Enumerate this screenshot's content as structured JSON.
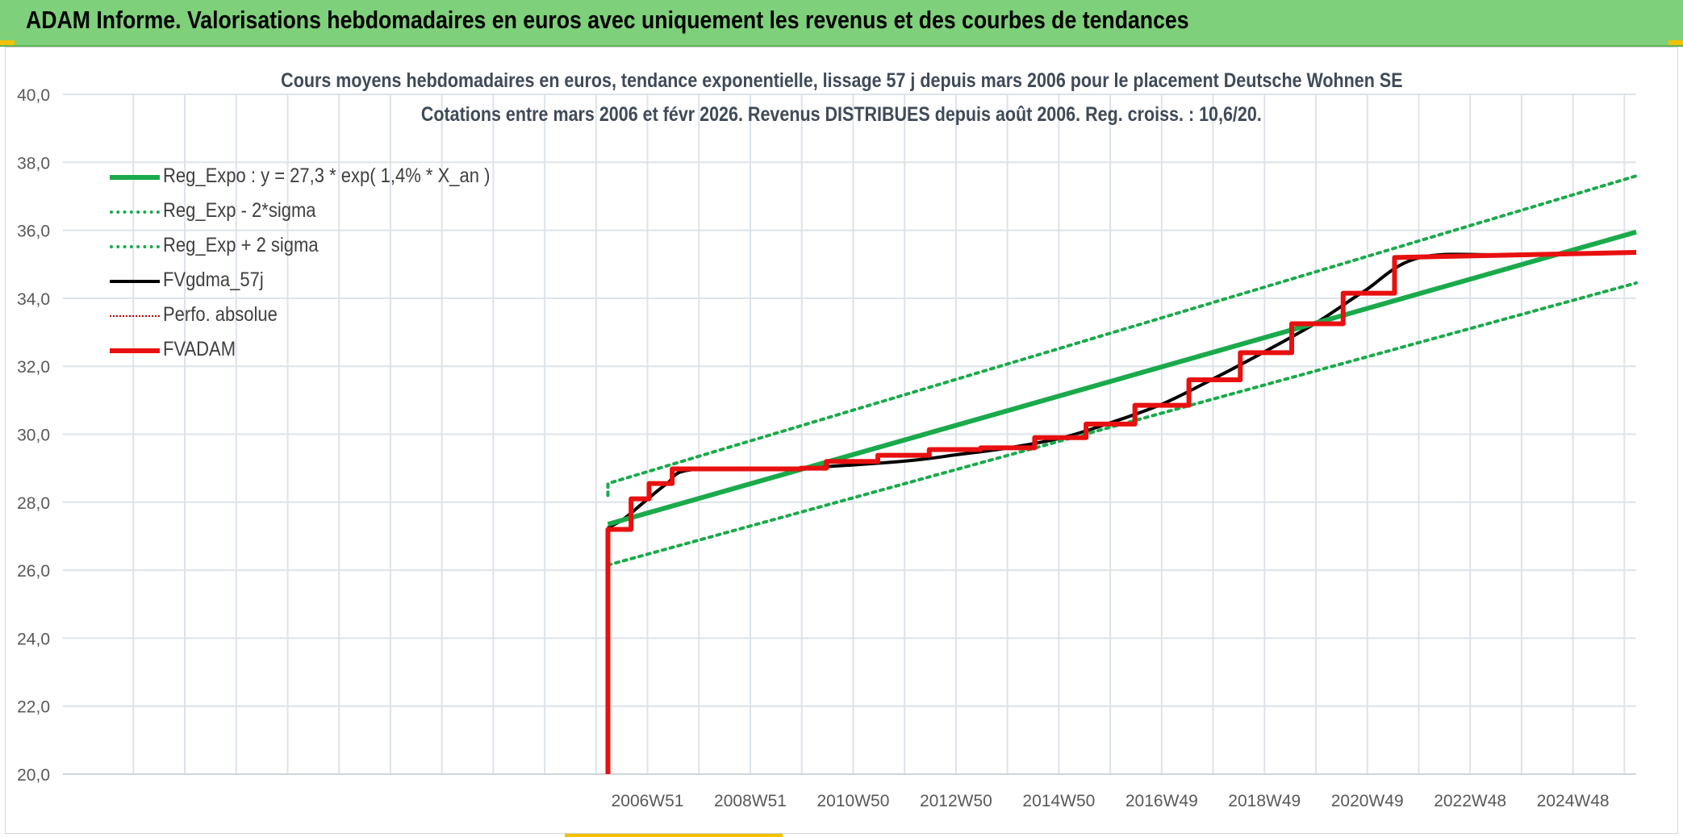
{
  "banner": {
    "title": "ADAM Informe. Valorisations hebdomadaires en euros avec uniquement les revenus et des courbes de tendances"
  },
  "colors": {
    "banner_bg": "#7ed07a",
    "reg_expo": "#1aaa4b",
    "fvgdma": "#000000",
    "perfo_absolue": "#c00000",
    "fvadam": "#e81010",
    "grid": "#dde3ea"
  },
  "chart_data": {
    "type": "line",
    "title": "Cours moyens hebdomadaires en euros, tendance exponentielle, lissage 57 j depuis mars 2006 pour le placement Deutsche Wohnen SE",
    "subtitle": "Cotations entre mars 2006 et févr 2026. Revenus DISTRIBUES depuis août 2006. Reg. croiss. : 10,6/20.",
    "xlabel": "",
    "ylabel": "",
    "ylim": [
      20,
      40
    ],
    "xlim": [
      1995.6,
      2026.2
    ],
    "y_ticks": [
      "20,0",
      "22,0",
      "24,0",
      "26,0",
      "28,0",
      "30,0",
      "32,0",
      "34,0",
      "36,0",
      "38,0",
      "40,0"
    ],
    "x_ticks": [
      {
        "label": "2006W51",
        "x": 2006.97
      },
      {
        "label": "2008W51",
        "x": 2008.97
      },
      {
        "label": "2010W50",
        "x": 2010.97
      },
      {
        "label": "2012W50",
        "x": 2012.97
      },
      {
        "label": "2014W50",
        "x": 2014.97
      },
      {
        "label": "2016W49",
        "x": 2016.97
      },
      {
        "label": "2018W49",
        "x": 2018.97
      },
      {
        "label": "2020W49",
        "x": 2020.97
      },
      {
        "label": "2022W48",
        "x": 2022.97
      },
      {
        "label": "2024W48",
        "x": 2024.97
      }
    ],
    "x_gridlines": [
      1996.97,
      1997.97,
      1998.97,
      1999.97,
      2000.97,
      2001.97,
      2002.97,
      2003.97,
      2004.97,
      2005.97,
      2006.97,
      2007.97,
      2008.97,
      2009.97,
      2010.97,
      2011.97,
      2012.97,
      2013.97,
      2014.97,
      2015.97,
      2016.97,
      2017.97,
      2018.97,
      2019.97,
      2020.97,
      2021.97,
      2022.97,
      2023.97,
      2024.97,
      2025.97
    ],
    "legend_position": "top-left",
    "grid": true,
    "series": [
      {
        "name": "Reg_Expo : y = 27,3 * exp( 1,4% *  X_an )",
        "style": "solid",
        "color": "#1aaa4b",
        "width": 6,
        "x": [
          2006.2,
          2026.2
        ],
        "y": [
          27.35,
          35.95
        ]
      },
      {
        "name": "Reg_Exp - 2*sigma",
        "style": "dotted",
        "color": "#1aaa4b",
        "width": 4,
        "x": [
          2006.2,
          2026.2
        ],
        "y": [
          26.15,
          34.45
        ]
      },
      {
        "name": "Reg_Exp + 2 sigma",
        "style": "dotted",
        "color": "#1aaa4b",
        "width": 4,
        "x": [
          2006.2,
          2006.2,
          2026.2
        ],
        "y": [
          28.2,
          28.55,
          37.6
        ]
      },
      {
        "name": "FVgdma_57j",
        "style": "smooth",
        "color": "#000000",
        "width": 4,
        "x": [
          2006.2,
          2006.5,
          2006.9,
          2007.35,
          2007.8,
          2009.6,
          2011.9,
          2013.0,
          2014.0,
          2015.05,
          2016.0,
          2017.0,
          2018.0,
          2019.0,
          2020.0,
          2020.9,
          2022.0,
          2024.0,
          2026.2
        ],
        "y": [
          27.25,
          27.5,
          28.0,
          28.55,
          28.95,
          28.98,
          29.2,
          29.4,
          29.6,
          29.9,
          30.35,
          30.9,
          31.65,
          32.45,
          33.3,
          34.2,
          35.2,
          35.27,
          35.33
        ]
      },
      {
        "name": "Perfo. absolue",
        "style": "dotted",
        "color": "#c00000",
        "width": 2,
        "x": [],
        "y": []
      },
      {
        "name": "FVADAM",
        "style": "step",
        "color": "#e81010",
        "width": 6,
        "x": [
          2006.2,
          2006.2,
          2006.65,
          2006.65,
          2007.0,
          2007.0,
          2007.45,
          2007.45,
          2009.95,
          2009.95,
          2010.45,
          2010.45,
          2011.45,
          2011.45,
          2012.45,
          2012.45,
          2013.45,
          2013.45,
          2014.5,
          2014.5,
          2015.5,
          2015.5,
          2016.45,
          2016.45,
          2017.5,
          2017.5,
          2018.5,
          2018.5,
          2019.5,
          2019.5,
          2020.5,
          2020.5,
          2021.5,
          2021.5,
          2026.2
        ],
        "y": [
          20.0,
          27.2,
          27.2,
          28.1,
          28.1,
          28.55,
          28.55,
          28.98,
          28.98,
          29.0,
          29.0,
          29.2,
          29.2,
          29.38,
          29.38,
          29.55,
          29.55,
          29.6,
          29.6,
          29.9,
          29.9,
          30.3,
          30.3,
          30.85,
          30.85,
          31.6,
          31.6,
          32.4,
          32.4,
          33.25,
          33.25,
          34.15,
          34.15,
          35.2,
          35.35
        ]
      }
    ]
  }
}
